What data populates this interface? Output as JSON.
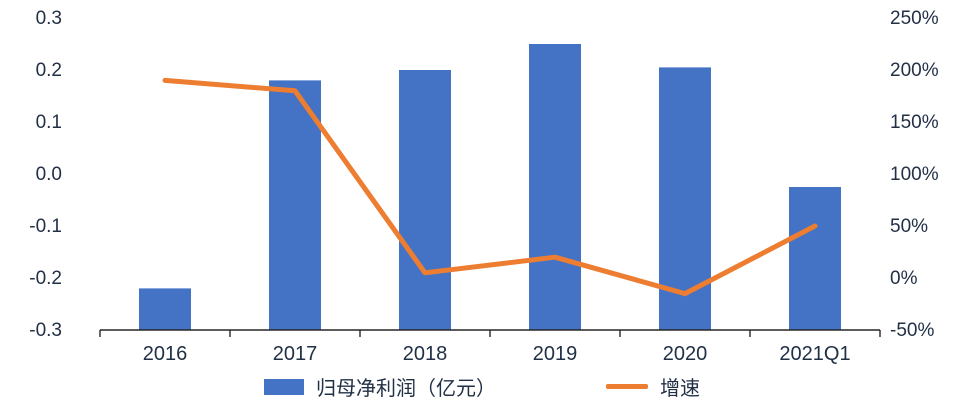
{
  "chart_data": {
    "type": "bar+line",
    "categories": [
      "2016",
      "2017",
      "2018",
      "2019",
      "2020",
      "2021Q1"
    ],
    "series": [
      {
        "name": "归母净利润（亿元）",
        "type": "bar",
        "axis": "left",
        "values": [
          -0.22,
          0.18,
          0.2,
          0.25,
          0.205,
          -0.025
        ],
        "color": "#4472C4"
      },
      {
        "name": "增速",
        "type": "line",
        "axis": "right",
        "values": [
          190,
          180,
          5,
          20,
          -15,
          50
        ],
        "unit": "%",
        "color": "#ED7D31"
      }
    ],
    "left_axis": {
      "min": -0.3,
      "max": 0.3,
      "ticks": [
        "0.3",
        "0.2",
        "0.1",
        "0.0",
        "-0.1",
        "-0.2",
        "-0.3"
      ]
    },
    "right_axis": {
      "min": -50,
      "max": 250,
      "ticks": [
        "250%",
        "200%",
        "150%",
        "100%",
        "50%",
        "0%",
        "-50%"
      ]
    },
    "legend": [
      "归母净利润（亿元）",
      "增速"
    ],
    "bar_base": "axis_min",
    "grid": "off",
    "legend_position": "bottom",
    "title": ""
  },
  "colors": {
    "bar": "#4472C4",
    "line": "#ED7D31",
    "text": "#223046",
    "axis": "#262626",
    "background": "#ffffff"
  }
}
